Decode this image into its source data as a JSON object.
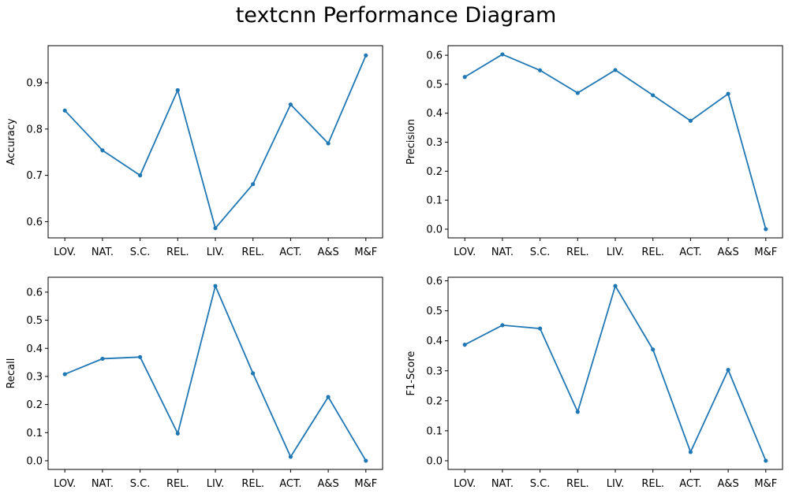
{
  "title": "textcnn Performance Diagram",
  "chart_data": [
    {
      "type": "line",
      "ylabel": "Accuracy",
      "categories": [
        "LOV.",
        "NAT.",
        "S.C.",
        "REL.",
        "LIV.",
        "REL.",
        "ACT.",
        "A&S",
        "M&F"
      ],
      "values": [
        0.84,
        0.754,
        0.7,
        0.884,
        0.586,
        0.681,
        0.853,
        0.769,
        0.959
      ],
      "ylim": [
        0.565,
        0.98
      ],
      "yticks": [
        0.6,
        0.7,
        0.8,
        0.9
      ],
      "ytick_labels": [
        "0.6",
        "0.7",
        "0.8",
        "0.9"
      ],
      "color": "#1f77b4",
      "grid": false
    },
    {
      "type": "line",
      "ylabel": "Precision",
      "categories": [
        "LOV.",
        "NAT.",
        "S.C.",
        "REL.",
        "LIV.",
        "REL.",
        "ACT.",
        "A&S",
        "M&F"
      ],
      "values": [
        0.525,
        0.603,
        0.548,
        0.47,
        0.549,
        0.462,
        0.374,
        0.467,
        0.0
      ],
      "ylim": [
        -0.03,
        0.633
      ],
      "yticks": [
        0.0,
        0.1,
        0.2,
        0.3,
        0.4,
        0.5,
        0.6
      ],
      "ytick_labels": [
        "0.0",
        "0.1",
        "0.2",
        "0.3",
        "0.4",
        "0.5",
        "0.6"
      ],
      "color": "#1f77b4",
      "grid": false
    },
    {
      "type": "line",
      "ylabel": "Recall",
      "categories": [
        "LOV.",
        "NAT.",
        "S.C.",
        "REL.",
        "LIV.",
        "REL.",
        "ACT.",
        "A&S",
        "M&F"
      ],
      "values": [
        0.308,
        0.363,
        0.369,
        0.097,
        0.622,
        0.311,
        0.014,
        0.227,
        0.0
      ],
      "ylim": [
        -0.031,
        0.653
      ],
      "yticks": [
        0.0,
        0.1,
        0.2,
        0.3,
        0.4,
        0.5,
        0.6
      ],
      "ytick_labels": [
        "0.0",
        "0.1",
        "0.2",
        "0.3",
        "0.4",
        "0.5",
        "0.6"
      ],
      "color": "#1f77b4",
      "grid": false
    },
    {
      "type": "line",
      "ylabel": "F1-Score",
      "categories": [
        "LOV.",
        "NAT.",
        "S.C.",
        "REL.",
        "LIV.",
        "REL.",
        "ACT.",
        "A&S",
        "M&F"
      ],
      "values": [
        0.387,
        0.452,
        0.441,
        0.163,
        0.583,
        0.371,
        0.029,
        0.303,
        0.0
      ],
      "ylim": [
        -0.029,
        0.612
      ],
      "yticks": [
        0.0,
        0.1,
        0.2,
        0.3,
        0.4,
        0.5,
        0.6
      ],
      "ytick_labels": [
        "0.0",
        "0.1",
        "0.2",
        "0.3",
        "0.4",
        "0.5",
        "0.6"
      ],
      "color": "#1f77b4",
      "grid": false
    }
  ]
}
